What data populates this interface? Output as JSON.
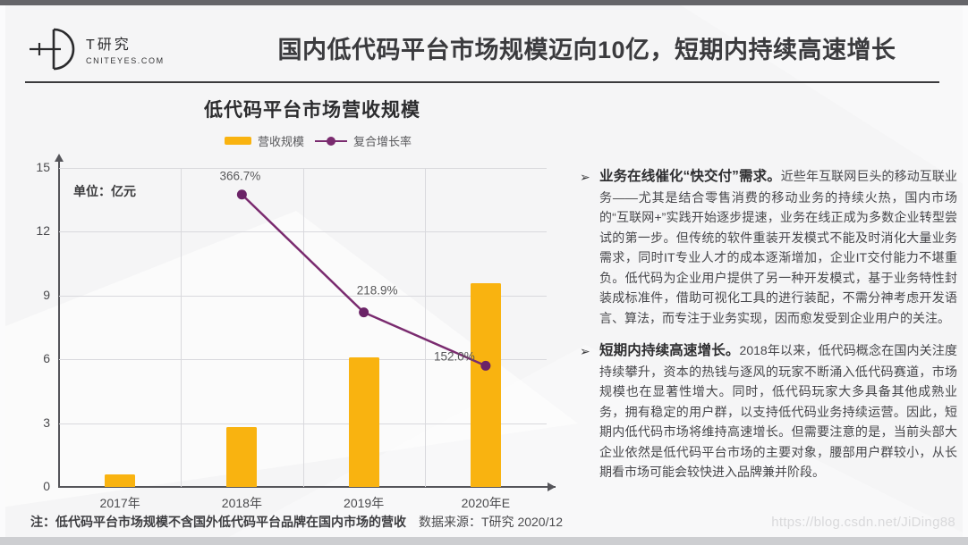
{
  "header": {
    "logo_name": "T研究",
    "logo_subtitle": "CNITEYES.COM",
    "title": "国内低代码平台市场规模迈向10亿，短期内持续高速增长"
  },
  "chart": {
    "title": "低代码平台市场营收规模",
    "unit_label": "单位：亿元",
    "legend": [
      {
        "label": "营收规模",
        "type": "bar",
        "color": "#F9B310"
      },
      {
        "label": "复合增长率",
        "type": "line",
        "color": "#7A2B6F"
      }
    ]
  },
  "chart_data": {
    "type": "bar",
    "title": "低代码平台市场营收规模",
    "categories": [
      "2017年",
      "2018年",
      "2019年",
      "2020年E"
    ],
    "series": [
      {
        "name": "营收规模",
        "type": "bar",
        "unit": "亿元",
        "color": "#F9B310",
        "values": [
          0.6,
          2.8,
          6.1,
          9.6
        ]
      },
      {
        "name": "复合增长率",
        "type": "line",
        "unit": "%",
        "color": "#7A2B6F",
        "marker_color": "#6B2367",
        "values": [
          null,
          366.7,
          218.9,
          152.0
        ],
        "labels": [
          null,
          "366.7%",
          "218.9%",
          "152.0%"
        ],
        "axis_max": 400
      }
    ],
    "ylabel": "单位：亿元",
    "ylim": [
      0,
      15
    ],
    "yticks": [
      0,
      3,
      6,
      9,
      12,
      15
    ],
    "grid": true,
    "legend_position": "top"
  },
  "panel": {
    "bullet_glyph": "➢",
    "bullets": [
      {
        "lead": "业务在线催化“快交付”需求。",
        "body": "近些年互联网巨头的移动互联业务——尤其是结合零售消费的移动业务的持续火热，国内市场的“互联网+”实践开始逐步提速，业务在线正成为多数企业转型尝试的第一步。但传统的软件重装开发模式不能及时消化大量业务需求，同时IT专业人才的成本逐渐增加，企业IT交付能力不堪重负。低代码为企业用户提供了另一种开发模式，基于业务特性封装成标准件，借助可视化工具的进行装配，不需分神考虑开发语言、算法，而专注于业务实现，因而愈发受到企业用户的关注。"
      },
      {
        "lead": "短期内持续高速增长。",
        "body": "2018年以来，低代码概念在国内关注度持续攀升，资本的热钱与逐风的玩家不断涌入低代码赛道，市场规模也在显著性增大。同时，低代码玩家大多具备其他成熟业务，拥有稳定的用户群，以支持低代码业务持续运营。因此，短期内低代码市场将维持高速增长。但需要注意的是，当前头部大企业依然是低代码平台市场的主要对象，腰部用户群较小，从长期看市场可能会较快进入品牌兼并阶段。"
      }
    ]
  },
  "footer": {
    "note": "注：低代码平台市场规模不含国外低代码平台品牌在国内市场的营收",
    "source": "数据来源：T研究 2020/12",
    "watermark": "https://blog.csdn.net/JiDing88"
  }
}
